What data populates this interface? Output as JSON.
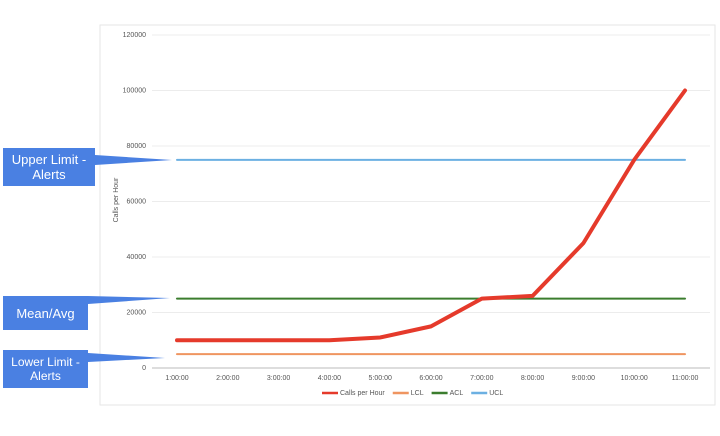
{
  "chart_data": {
    "type": "line",
    "y_label": "Calls per Hour",
    "categories": [
      "1:00:00",
      "2:00:00",
      "3:00:00",
      "4:00:00",
      "5:00:00",
      "6:00:00",
      "7:00:00",
      "8:00:00",
      "9:00:00",
      "10:00:00",
      "11:00:00"
    ],
    "series": [
      {
        "name": "Calls per Hour",
        "color": "#e53a2b",
        "width": 4,
        "values": [
          10000,
          10000,
          10000,
          10000,
          11000,
          15000,
          25000,
          26000,
          45000,
          75000,
          100000
        ]
      },
      {
        "name": "LCL",
        "color": "#ef9560",
        "width": 2,
        "values": [
          5000,
          5000,
          5000,
          5000,
          5000,
          5000,
          5000,
          5000,
          5000,
          5000,
          5000
        ]
      },
      {
        "name": "ACL",
        "color": "#3b7d2e",
        "width": 2,
        "values": [
          25000,
          25000,
          25000,
          25000,
          25000,
          25000,
          25000,
          25000,
          25000,
          25000,
          25000
        ]
      },
      {
        "name": "UCL",
        "color": "#6cb0e2",
        "width": 2,
        "values": [
          75000,
          75000,
          75000,
          75000,
          75000,
          75000,
          75000,
          75000,
          75000,
          75000,
          75000
        ]
      }
    ],
    "ylim": [
      0,
      120000
    ],
    "yticks": [
      0,
      20000,
      40000,
      60000,
      80000,
      100000,
      120000
    ],
    "grid": true,
    "annotations": [
      "Upper Limit - Alerts",
      "Mean/Avg",
      "Lower Limit - Alerts"
    ]
  }
}
